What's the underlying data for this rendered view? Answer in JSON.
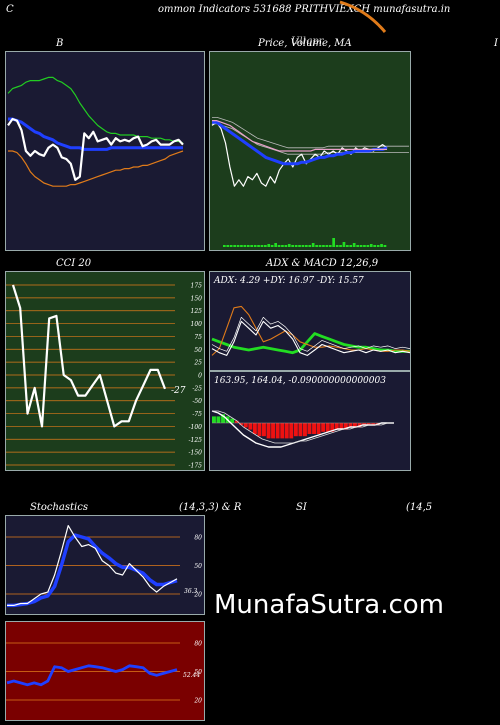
{
  "header": {
    "title": "ommon Indicators 531688 PRITHVIEXCH munafasutra.in",
    "left_letter": "C",
    "right_letter": "I"
  },
  "watermark": "MunafaSutra.com",
  "colors": {
    "navy": "#1a1a33",
    "green_bg": "#1c3d1c",
    "red_bg": "#7a0000",
    "orange": "#e07b1a",
    "blue": "#1f3fff",
    "bright_green": "#22dd22"
  },
  "panels": {
    "bollinger": {
      "title": "B"
    },
    "price_ma": {
      "title": "Price,  Volume, MA",
      "overlay": "Ullqpr"
    },
    "cci": {
      "title": "CCI 20"
    },
    "adx_macd": {
      "title": "ADX  & MACD 12,26,9"
    },
    "stochastics": {
      "title_left": "Stochastics",
      "title_mid": "(14,3,3) & R",
      "title_si": "SI",
      "title_right": "(14,5"
    }
  },
  "chart_data": [
    {
      "type": "line",
      "name": "bollinger",
      "series": [
        {
          "key": "upper",
          "color": "#22cc22",
          "values": [
            96,
            99,
            100,
            101,
            103,
            104,
            104,
            104,
            105,
            106,
            106,
            104,
            103,
            101,
            99,
            95,
            90,
            86,
            82,
            79,
            76,
            74,
            72,
            71,
            71,
            70,
            70,
            70,
            70,
            69,
            69,
            69,
            68,
            68,
            68,
            67,
            67,
            66,
            66,
            65
          ]
        },
        {
          "key": "middle",
          "color": "#1f3fff",
          "values": [
            80,
            80,
            79,
            78,
            76,
            74,
            72,
            71,
            69,
            68,
            67,
            65,
            64,
            63,
            62,
            62,
            62,
            61,
            61,
            61,
            61,
            61,
            61,
            62,
            62,
            62,
            62,
            62,
            62,
            62,
            62,
            62,
            62,
            62,
            62,
            62,
            62,
            62,
            62,
            62
          ]
        },
        {
          "key": "lower",
          "color": "#e07b1a",
          "values": [
            60,
            60,
            59,
            56,
            52,
            47,
            44,
            42,
            40,
            39,
            38,
            38,
            38,
            38,
            39,
            39,
            40,
            41,
            42,
            43,
            44,
            45,
            46,
            47,
            48,
            48,
            49,
            49,
            50,
            50,
            51,
            51,
            52,
            53,
            54,
            55,
            57,
            58,
            59,
            60
          ]
        },
        {
          "key": "price",
          "color": "#ffffff",
          "values": [
            76,
            80,
            79,
            73,
            60,
            57,
            60,
            58,
            57,
            62,
            64,
            62,
            56,
            55,
            52,
            42,
            44,
            71,
            68,
            72,
            66,
            67,
            68,
            64,
            68,
            66,
            67,
            66,
            68,
            69,
            63,
            64,
            66,
            67,
            64,
            64,
            64,
            66,
            67,
            64
          ]
        }
      ]
    },
    {
      "type": "line",
      "name": "price-ma",
      "series": [
        {
          "key": "price",
          "color": "#ffffff",
          "values": [
            76,
            78,
            74,
            65,
            50,
            38,
            42,
            38,
            44,
            42,
            46,
            40,
            38,
            44,
            40,
            48,
            52,
            55,
            50,
            56,
            58,
            52,
            55,
            58,
            56,
            60,
            58,
            60,
            58,
            62,
            60,
            58,
            62,
            60,
            62,
            61,
            60,
            62,
            64,
            62
          ]
        },
        {
          "key": "ma-blue",
          "color": "#1f3fff",
          "values": [
            78,
            78,
            76,
            74,
            72,
            70,
            68,
            66,
            64,
            62,
            60,
            58,
            56,
            55,
            54,
            53,
            52,
            52,
            52,
            52,
            53,
            53,
            54,
            55,
            56,
            56,
            57,
            57,
            58,
            58,
            59,
            59,
            60,
            60,
            60,
            60,
            61,
            61,
            61,
            62
          ]
        },
        {
          "key": "ma-pink",
          "color": "#e8a0c8",
          "values": [
            79,
            79,
            78,
            77,
            76,
            74,
            72,
            70,
            68,
            66,
            65,
            64,
            63,
            62,
            61,
            60,
            60,
            60,
            60,
            60,
            60,
            60,
            60,
            61,
            61,
            61,
            61,
            61,
            61,
            61,
            61,
            61,
            61,
            61,
            61,
            61,
            61,
            61,
            61,
            61
          ]
        }
      ],
      "volume": [
        2,
        2,
        2,
        2,
        2,
        2,
        2,
        2,
        2,
        2,
        2,
        2,
        2,
        3,
        2,
        4,
        2,
        2,
        2,
        3,
        2,
        2,
        2,
        2,
        2,
        2,
        4,
        2,
        2,
        2,
        2,
        2,
        9,
        2,
        2,
        5,
        2,
        2,
        4,
        2,
        2,
        2,
        2,
        3,
        2,
        2,
        3,
        2
      ]
    },
    {
      "type": "line",
      "name": "cci",
      "y_ticks": [
        175,
        150,
        125,
        100,
        75,
        50,
        25,
        0,
        -25,
        -50,
        -75,
        -100,
        -125,
        -150,
        -175
      ],
      "ylim": [
        -175,
        175
      ],
      "values": [
        175,
        130,
        -75,
        -25,
        -100,
        110,
        115,
        0,
        -10,
        -40,
        -40,
        -20,
        0,
        -50,
        -100,
        -90,
        -90,
        -50,
        -20,
        10,
        10,
        -27
      ],
      "last_label": "-27"
    },
    {
      "type": "line",
      "name": "adx",
      "label": "ADX: 4.29  +DY: 16.97  -DY: 15.57",
      "series": [
        {
          "key": "adx",
          "color": "#22dd22",
          "values": [
            22,
            20,
            18,
            16,
            15,
            14,
            15,
            16,
            15,
            14,
            13,
            12,
            14,
            20,
            26,
            24,
            22,
            20,
            18,
            17,
            16,
            16,
            15,
            14,
            14,
            13,
            13,
            13
          ]
        },
        {
          "key": "plus-di",
          "color": "#e07b1a",
          "values": [
            10,
            15,
            30,
            45,
            46,
            40,
            30,
            20,
            22,
            25,
            28,
            25,
            20,
            18,
            16,
            16,
            17,
            16,
            15,
            14,
            14,
            15,
            14,
            13,
            13,
            14,
            14,
            13
          ]
        },
        {
          "key": "minus-di",
          "color": "#ffffff",
          "values": [
            15,
            12,
            10,
            20,
            35,
            30,
            25,
            35,
            30,
            32,
            28,
            22,
            12,
            10,
            14,
            18,
            16,
            14,
            12,
            13,
            14,
            12,
            14,
            13,
            14,
            12,
            13,
            12
          ]
        }
      ]
    },
    {
      "type": "bar",
      "name": "macd",
      "label": "163.95,  164.04,  -0.090000000000003",
      "histogram": [
        3,
        3,
        4,
        3,
        2,
        1,
        -1,
        -2,
        -3,
        -5,
        -6,
        -6,
        -7,
        -7,
        -7,
        -7,
        -7,
        -7,
        -6,
        -6,
        -6,
        -5,
        -5,
        -5,
        -4,
        -4,
        -4,
        -3,
        -3,
        -3,
        -2,
        -2,
        -2,
        -1,
        -1,
        -1,
        -1,
        0,
        0,
        0
      ],
      "macd": [
        6,
        5,
        3,
        0,
        -3,
        -6,
        -8,
        -10,
        -11,
        -12,
        -12,
        -12,
        -11,
        -10,
        -9,
        -8,
        -7,
        -6,
        -5,
        -4,
        -3,
        -3,
        -2,
        -2,
        -1,
        -1,
        -1,
        0,
        0,
        0
      ],
      "signal": [
        6,
        6,
        5,
        3,
        1,
        -2,
        -4,
        -6,
        -8,
        -9,
        -10,
        -10,
        -10,
        -10,
        -9,
        -9,
        -8,
        -7,
        -6,
        -5,
        -4,
        -3,
        -3,
        -2,
        -2,
        -1,
        -1,
        -1,
        0,
        0
      ]
    },
    {
      "type": "line",
      "name": "stochastics",
      "y_ticks": [
        80,
        50,
        20
      ],
      "ylim": [
        0,
        100
      ],
      "series": [
        {
          "key": "k",
          "color": "#ffffff",
          "values": [
            8,
            8,
            10,
            10,
            15,
            20,
            22,
            40,
            65,
            92,
            80,
            70,
            72,
            68,
            55,
            50,
            42,
            40,
            52,
            45,
            38,
            28,
            22,
            28,
            32,
            36
          ]
        },
        {
          "key": "d",
          "color": "#1f3fff",
          "values": [
            8,
            8,
            9,
            10,
            12,
            16,
            18,
            28,
            50,
            75,
            82,
            80,
            78,
            70,
            63,
            58,
            52,
            48,
            48,
            45,
            42,
            35,
            30,
            30,
            32,
            34
          ]
        }
      ],
      "last_label": "36.3"
    },
    {
      "type": "line",
      "name": "rsi",
      "y_ticks": [
        80,
        50,
        20
      ],
      "ylim": [
        0,
        100
      ],
      "values": [
        38,
        40,
        38,
        36,
        38,
        36,
        40,
        55,
        54,
        50,
        52,
        54,
        56,
        55,
        54,
        52,
        50,
        52,
        56,
        55,
        54,
        48,
        46,
        48,
        50,
        52
      ],
      "last_label": "52.44"
    }
  ]
}
